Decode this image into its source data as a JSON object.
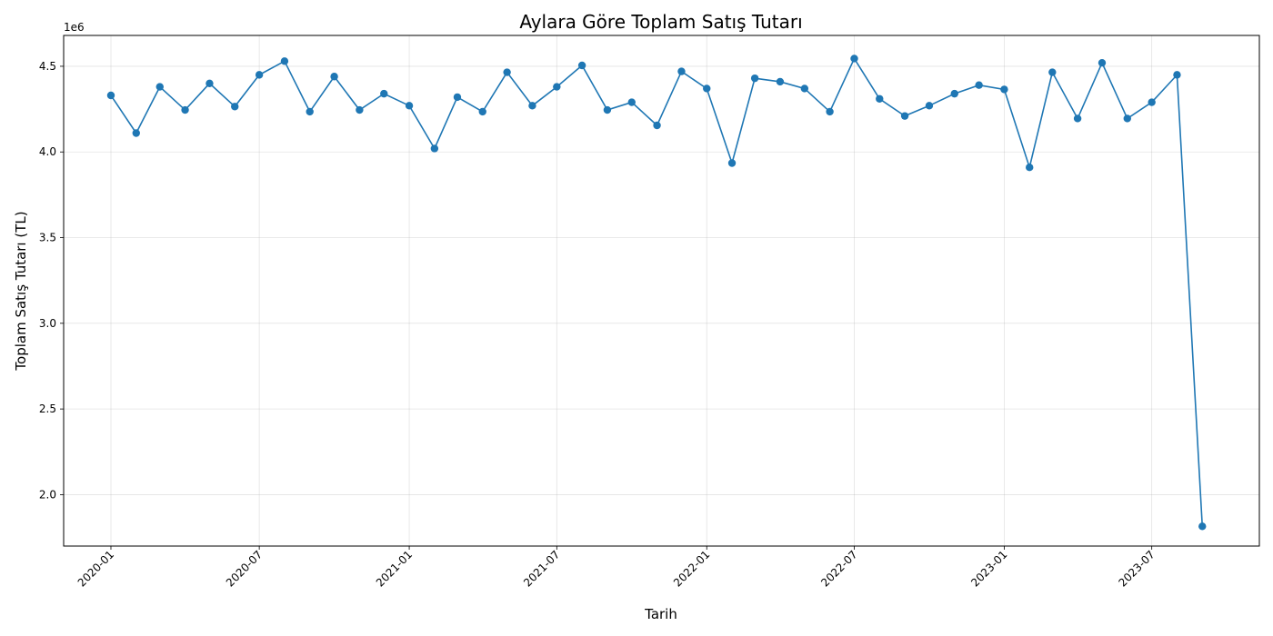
{
  "chart_data": {
    "type": "line",
    "title": "Aylara Göre Toplam Satış Tutarı",
    "xlabel": "Tarih",
    "ylabel": "Toplam Satış Tutarı (TL)",
    "y_offset_label": "1e6",
    "y_scale": 1000000,
    "ylim": [
      1.7,
      4.68
    ],
    "xlim": [
      "2019-11-04",
      "2023-11-10"
    ],
    "grid": true,
    "line_color": "#1f77b4",
    "marker": "circle",
    "x_ticks": [
      "2020-01",
      "2020-07",
      "2021-01",
      "2021-07",
      "2022-01",
      "2022-07",
      "2023-01",
      "2023-07"
    ],
    "y_ticks": [
      "2.0",
      "2.5",
      "3.0",
      "3.5",
      "4.0",
      "4.5"
    ],
    "series": [
      {
        "x": [
          "2020-01-01",
          "2020-02-01",
          "2020-03-01",
          "2020-04-01",
          "2020-05-01",
          "2020-06-01",
          "2020-07-01",
          "2020-08-01",
          "2020-09-01",
          "2020-10-01",
          "2020-11-01",
          "2020-12-01",
          "2021-01-01",
          "2021-02-01",
          "2021-03-01",
          "2021-04-01",
          "2021-05-01",
          "2021-06-01",
          "2021-07-01",
          "2021-08-01",
          "2021-09-01",
          "2021-10-01",
          "2021-11-01",
          "2021-12-01",
          "2022-01-01",
          "2022-02-01",
          "2022-03-01",
          "2022-04-01",
          "2022-05-01",
          "2022-06-01",
          "2022-07-01",
          "2022-08-01",
          "2022-09-01",
          "2022-10-01",
          "2022-11-01",
          "2022-12-01",
          "2023-01-01",
          "2023-02-01",
          "2023-03-01",
          "2023-04-01",
          "2023-05-01",
          "2023-06-01",
          "2023-07-01",
          "2023-08-01",
          "2023-09-01"
        ],
        "y": [
          4.33,
          4.11,
          4.38,
          4.245,
          4.4,
          4.265,
          4.45,
          4.53,
          4.235,
          4.44,
          4.245,
          4.34,
          4.27,
          4.02,
          4.32,
          4.235,
          4.465,
          4.27,
          4.38,
          4.505,
          4.245,
          4.29,
          4.155,
          4.47,
          4.37,
          3.935,
          4.43,
          4.41,
          4.37,
          4.235,
          4.545,
          4.31,
          4.21,
          4.27,
          4.34,
          4.39,
          4.365,
          3.91,
          4.465,
          4.195,
          4.52,
          4.195,
          4.29,
          4.45,
          1.815
        ]
      }
    ]
  }
}
